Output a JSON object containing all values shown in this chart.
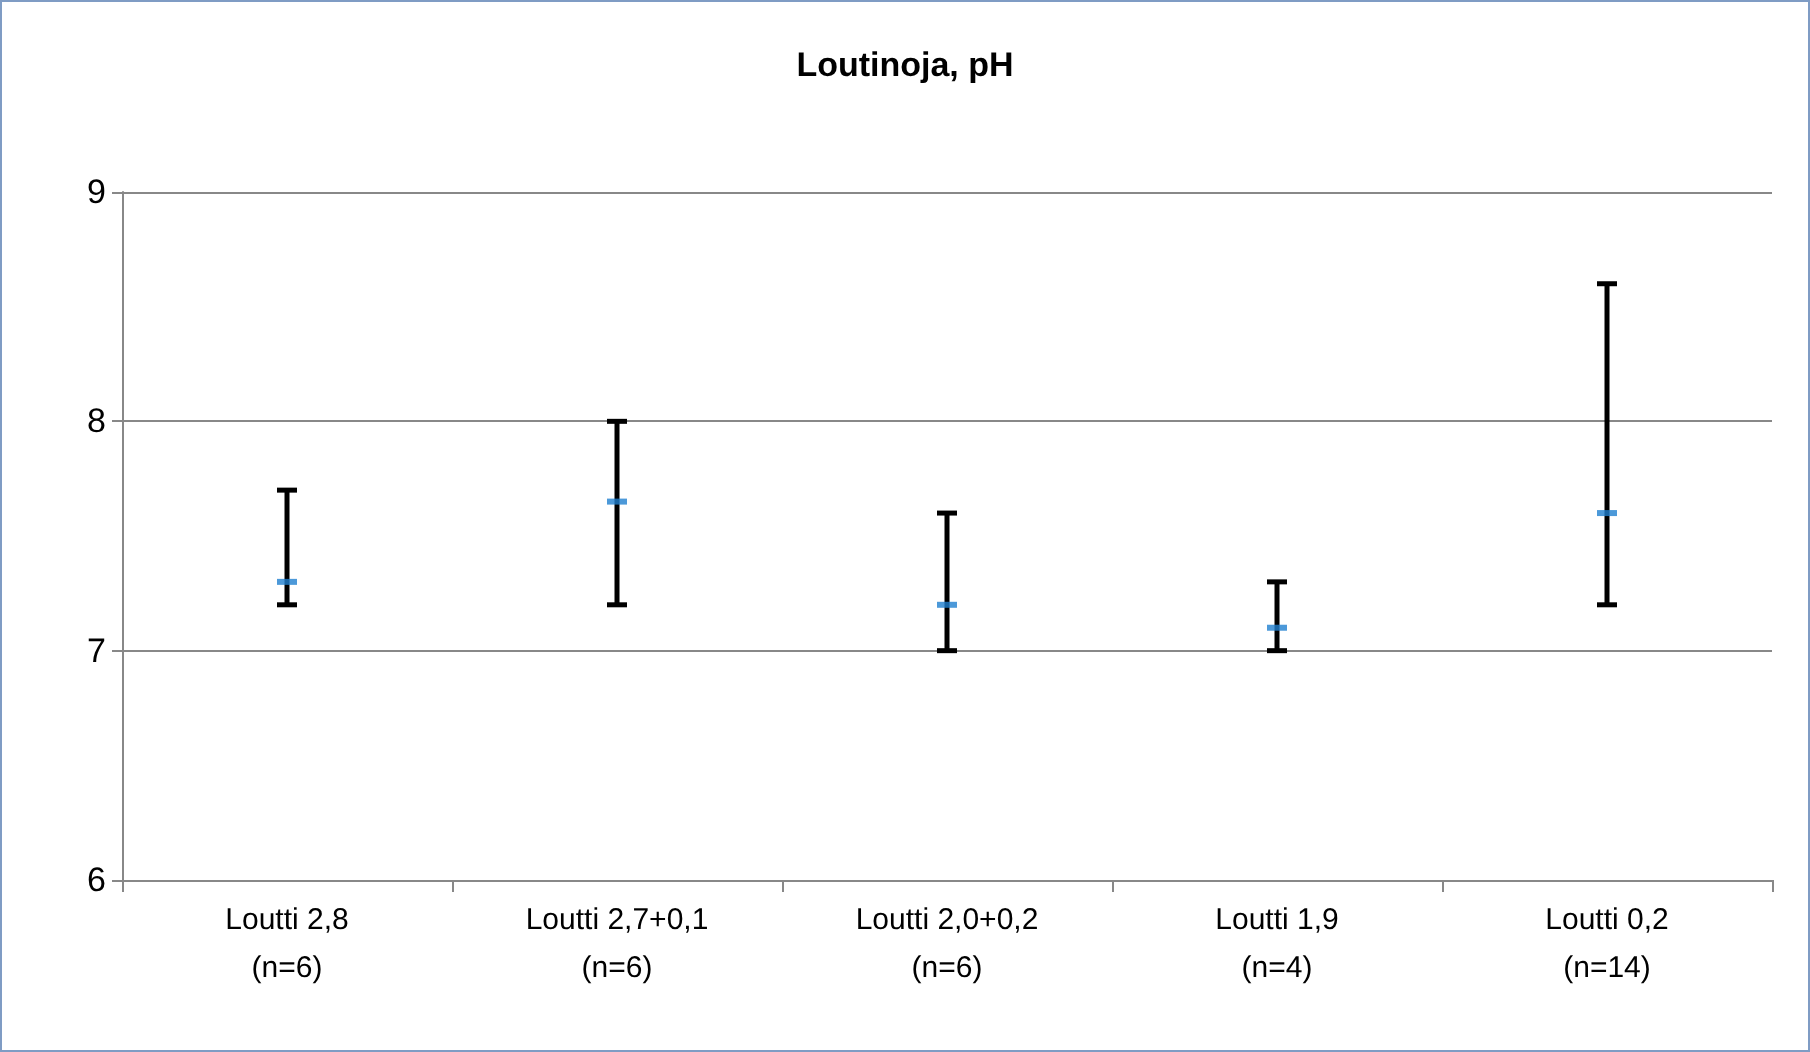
{
  "chart_data": {
    "type": "scatter",
    "title": "Loutinoja, pH",
    "categories": [
      "Loutti 2,8\n(n=6)",
      "Loutti 2,7+0,1\n(n=6)",
      "Loutti 2,0+0,2\n(n=6)",
      "Loutti 1,9\n(n=4)",
      "Loutti 0,2\n(n=14)"
    ],
    "series": [
      {
        "color": "#1f7fd0",
        "values": [
          7.3,
          7.65,
          7.2,
          7.1,
          7.6
        ],
        "errors": [
          [
            7.2,
            7.7
          ],
          [
            7.2,
            8.0
          ],
          [
            7.0,
            7.6
          ],
          [
            7.0,
            7.3
          ],
          [
            7.2,
            8.6
          ]
        ]
      }
    ],
    "ylim": [
      6,
      9
    ],
    "yticks": [
      6,
      7,
      8,
      9
    ],
    "grid": "y"
  }
}
